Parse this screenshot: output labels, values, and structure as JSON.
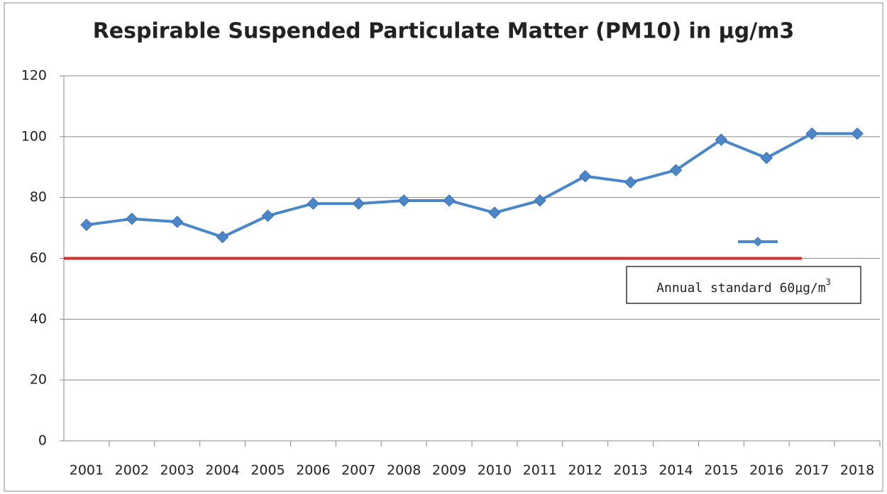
{
  "chart_data": {
    "type": "line",
    "title": "Respirable Suspended Particulate Matter (PM10) in  µg/m3",
    "categories": [
      "2001",
      "2002",
      "2003",
      "2004",
      "2005",
      "2006",
      "2007",
      "2008",
      "2009",
      "2010",
      "2011",
      "2012",
      "2013",
      "2014",
      "2015",
      "2016",
      "2017",
      "2018"
    ],
    "series": [
      {
        "color": "#4a86c8",
        "values": [
          71,
          73,
          72,
          67,
          74,
          78,
          78,
          79,
          79,
          75,
          79,
          87,
          85,
          89,
          99,
          93,
          101,
          101
        ]
      }
    ],
    "reference_line": {
      "value": 60,
      "color": "#d0312d"
    },
    "annotation": {
      "text": "Annual standard 60µg/m",
      "sup": "3"
    },
    "ylim": [
      0,
      120
    ],
    "yticks": [
      0,
      20,
      40,
      60,
      80,
      100,
      120
    ],
    "grid": true
  }
}
